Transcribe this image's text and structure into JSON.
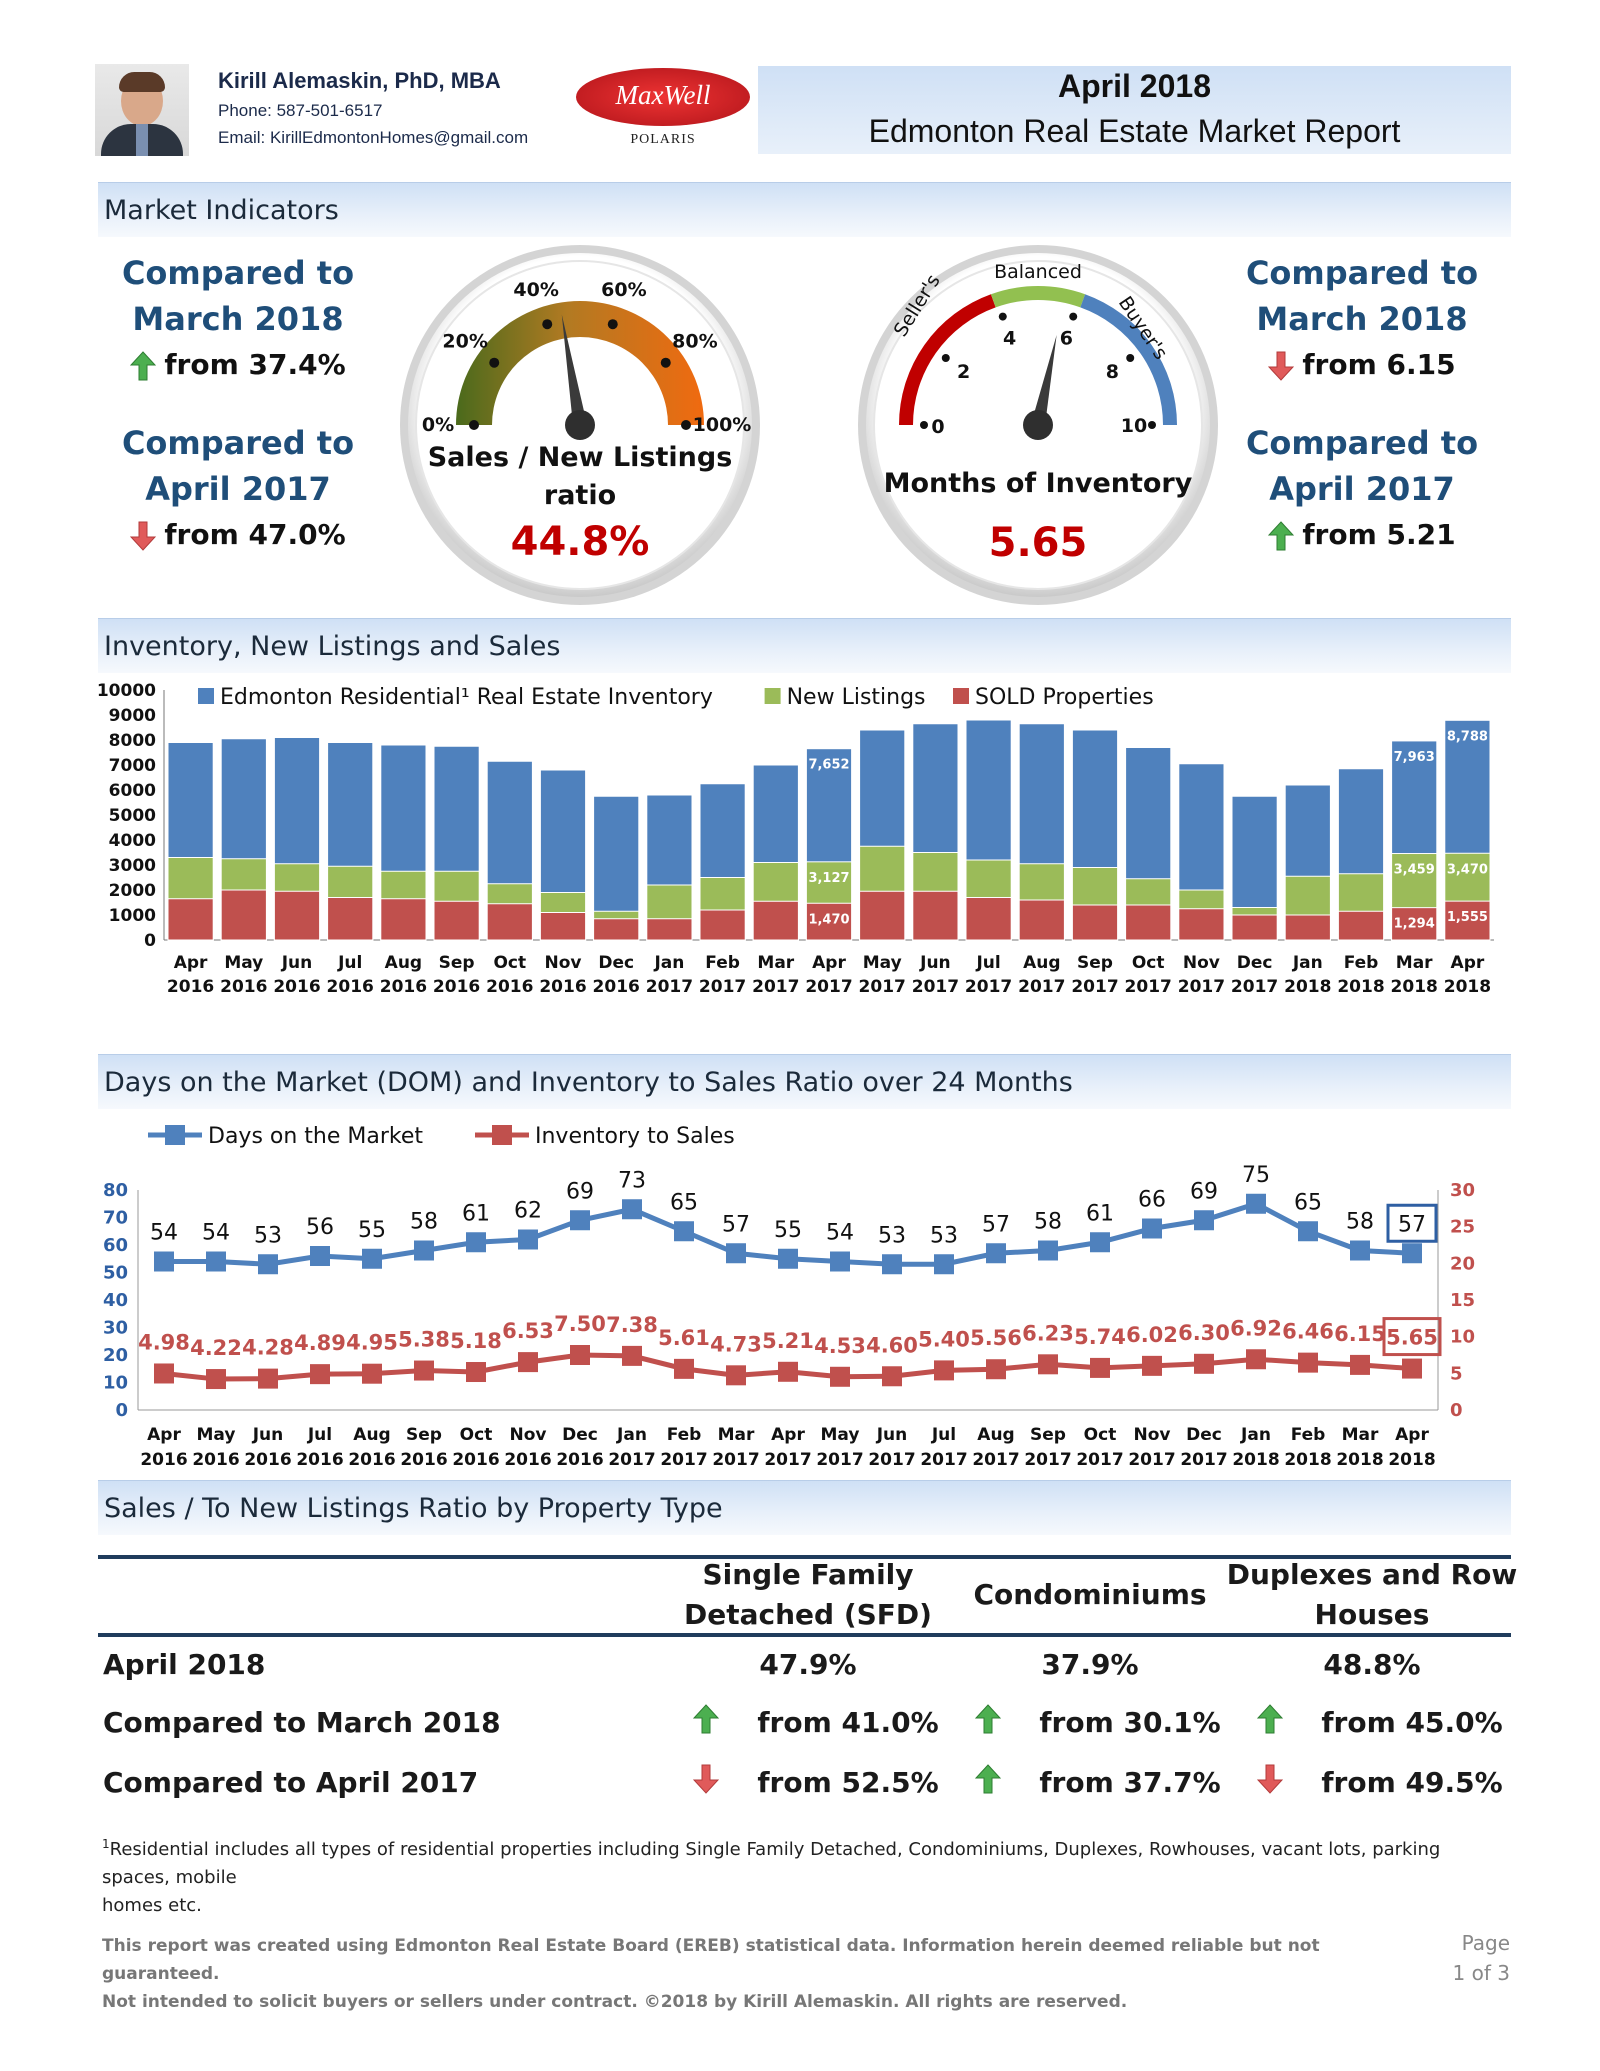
{
  "header": {
    "name": "Kirill Alemaskin, PhD, MBA",
    "phone": "Phone: 587-501-6517",
    "email": "Email: KirillEdmontonHomes@gmail.com",
    "logo_text": "MaxWell",
    "logo_sub": "POLARIS",
    "report_date": "April 2018",
    "report_title": "Edmonton Real Estate Market Report"
  },
  "sections": {
    "indicators": "Market Indicators",
    "inventory": "Inventory, New Listings and Sales",
    "dom": "Days on the Market (DOM) and Inventory to Sales Ratio over 24 Months",
    "ratio": "Sales / To New Listings Ratio by Property Type"
  },
  "gauge1": {
    "title_line1": "Sales / New Listings",
    "title_line2": "ratio",
    "value": "44.8%",
    "value_num": 44.8,
    "ticks": [
      "0%",
      "20%",
      "40%",
      "60%",
      "80%",
      "100%"
    ]
  },
  "gauge2": {
    "title": "Months of Inventory",
    "value": "5.65",
    "value_num": 5.65,
    "ticks": [
      "0",
      "2",
      "4",
      "6",
      "8",
      "10"
    ],
    "zones": [
      "Seller's",
      "Balanced",
      "Buyer's"
    ]
  },
  "left_compare": [
    {
      "line1": "Compared to",
      "line2": "March 2018",
      "from": "from 37.4%",
      "dir": "up"
    },
    {
      "line1": "Compared to",
      "line2": "April 2017",
      "from": "from 47.0%",
      "dir": "down"
    }
  ],
  "right_compare": [
    {
      "line1": "Compared to",
      "line2": "March 2018",
      "from": "from 6.15",
      "dir": "down"
    },
    {
      "line1": "Compared to",
      "line2": "April 2017",
      "from": "from 5.21",
      "dir": "up"
    }
  ],
  "chart_data": [
    {
      "type": "bar",
      "legend": [
        "Edmonton Residential¹ Real Estate Inventory",
        "New Listings",
        "SOLD Properties"
      ],
      "colors": [
        "#4f81bd",
        "#9bbb59",
        "#c0504d"
      ],
      "categories": [
        [
          "Apr",
          "2016"
        ],
        [
          "May",
          "2016"
        ],
        [
          "Jun",
          "2016"
        ],
        [
          "Jul",
          "2016"
        ],
        [
          "Aug",
          "2016"
        ],
        [
          "Sep",
          "2016"
        ],
        [
          "Oct",
          "2016"
        ],
        [
          "Nov",
          "2016"
        ],
        [
          "Dec",
          "2016"
        ],
        [
          "Jan",
          "2017"
        ],
        [
          "Feb",
          "2017"
        ],
        [
          "Mar",
          "2017"
        ],
        [
          "Apr",
          "2017"
        ],
        [
          "May",
          "2017"
        ],
        [
          "Jun",
          "2017"
        ],
        [
          "Jul",
          "2017"
        ],
        [
          "Aug",
          "2017"
        ],
        [
          "Sep",
          "2017"
        ],
        [
          "Oct",
          "2017"
        ],
        [
          "Nov",
          "2017"
        ],
        [
          "Dec",
          "2017"
        ],
        [
          "Jan",
          "2018"
        ],
        [
          "Feb",
          "2018"
        ],
        [
          "Mar",
          "2018"
        ],
        [
          "Apr",
          "2018"
        ]
      ],
      "series": [
        {
          "name": "Edmonton Residential¹ Real Estate Inventory",
          "values": [
            7900,
            8050,
            8100,
            7900,
            7800,
            7750,
            7150,
            6800,
            5750,
            5800,
            6250,
            7000,
            7652,
            8400,
            8650,
            8800,
            8650,
            8400,
            7700,
            7050,
            5750,
            6200,
            6850,
            7963,
            8788
          ]
        },
        {
          "name": "New Listings",
          "values": [
            3300,
            3250,
            3050,
            2950,
            2750,
            2750,
            2250,
            1900,
            1150,
            2200,
            2500,
            3100,
            3127,
            3750,
            3500,
            3200,
            3050,
            2900,
            2450,
            2000,
            1300,
            2550,
            2650,
            3459,
            3470
          ]
        },
        {
          "name": "SOLD Properties",
          "values": [
            1650,
            2000,
            1950,
            1700,
            1650,
            1550,
            1450,
            1100,
            850,
            850,
            1200,
            1550,
            1470,
            1950,
            1950,
            1700,
            1600,
            1400,
            1400,
            1250,
            1000,
            1000,
            1150,
            1294,
            1555
          ]
        }
      ],
      "labels": [
        {
          "index": 12,
          "inventory": "7,652",
          "listings": "3,127",
          "sold": "1,470"
        },
        {
          "index": 23,
          "inventory": "7,963",
          "listings": "3,459",
          "sold": "1,294"
        },
        {
          "index": 24,
          "inventory": "8,788",
          "listings": "3,470",
          "sold": "1,555"
        }
      ],
      "ylim": [
        0,
        10000
      ],
      "yticks": [
        "0",
        "1000",
        "2000",
        "3000",
        "4000",
        "5000",
        "6000",
        "7000",
        "8000",
        "9000",
        "10000"
      ]
    },
    {
      "type": "line",
      "legend": [
        "Days on the Market",
        "Inventory to Sales"
      ],
      "colors": [
        "#4f81bd",
        "#c0504d"
      ],
      "categories": [
        [
          "Apr",
          "2016"
        ],
        [
          "May",
          "2016"
        ],
        [
          "Jun",
          "2016"
        ],
        [
          "Jul",
          "2016"
        ],
        [
          "Aug",
          "2016"
        ],
        [
          "Sep",
          "2016"
        ],
        [
          "Oct",
          "2016"
        ],
        [
          "Nov",
          "2016"
        ],
        [
          "Dec",
          "2016"
        ],
        [
          "Jan",
          "2017"
        ],
        [
          "Feb",
          "2017"
        ],
        [
          "Mar",
          "2017"
        ],
        [
          "Apr",
          "2017"
        ],
        [
          "May",
          "2017"
        ],
        [
          "Jun",
          "2017"
        ],
        [
          "Jul",
          "2017"
        ],
        [
          "Aug",
          "2017"
        ],
        [
          "Sep",
          "2017"
        ],
        [
          "Oct",
          "2017"
        ],
        [
          "Nov",
          "2017"
        ],
        [
          "Dec",
          "2017"
        ],
        [
          "Jan",
          "2018"
        ],
        [
          "Feb",
          "2018"
        ],
        [
          "Mar",
          "2018"
        ],
        [
          "Apr",
          "2018"
        ]
      ],
      "series": [
        {
          "name": "Days on the Market",
          "axis": "left",
          "values": [
            54,
            54,
            53,
            56,
            55,
            58,
            61,
            62,
            69,
            73,
            65,
            57,
            55,
            54,
            53,
            53,
            57,
            58,
            61,
            66,
            69,
            75,
            65,
            58,
            57
          ],
          "labels": [
            "54",
            "54",
            "53",
            "56",
            "55",
            "58",
            "61",
            "62",
            "69",
            "73",
            "65",
            "57",
            "55",
            "54",
            "53",
            "53",
            "57",
            "58",
            "61",
            "66",
            "69",
            "75",
            "65",
            "58",
            "57"
          ]
        },
        {
          "name": "Inventory to Sales",
          "axis": "right",
          "values": [
            4.98,
            4.22,
            4.28,
            4.89,
            4.95,
            5.38,
            5.18,
            6.53,
            7.5,
            7.38,
            5.61,
            4.73,
            5.21,
            4.53,
            4.6,
            5.4,
            5.56,
            6.23,
            5.74,
            6.02,
            6.3,
            6.92,
            6.46,
            6.15,
            5.65
          ],
          "labels": [
            "4.98",
            "4.22",
            "4.28",
            "4.89",
            "4.95",
            "5.38",
            "5.18",
            "6.53",
            "7.50",
            "7.38",
            "5.61",
            "4.73",
            "5.21",
            "4.53",
            "4.60",
            "5.40",
            "5.56",
            "6.23",
            "5.74",
            "6.02",
            "6.30",
            "6.92",
            "6.46",
            "6.15",
            "5.65"
          ]
        }
      ],
      "ylim_left": [
        0,
        80
      ],
      "yticks_left": [
        "0",
        "10",
        "20",
        "30",
        "40",
        "50",
        "60",
        "70",
        "80"
      ],
      "ylim_right": [
        0,
        30
      ],
      "yticks_right": [
        "0",
        "5",
        "10",
        "15",
        "20",
        "25",
        "30"
      ]
    }
  ],
  "ratio_table": {
    "headers": [
      [
        "Single Family",
        "Detached (SFD)"
      ],
      [
        "Condominiums"
      ],
      [
        "Duplexes and Row",
        "Houses"
      ]
    ],
    "rows": [
      {
        "label": "April 2018",
        "cells": [
          {
            "text": "47.9%",
            "dir": ""
          },
          {
            "text": "37.9%",
            "dir": ""
          },
          {
            "text": "48.8%",
            "dir": ""
          }
        ]
      },
      {
        "label": "Compared to March 2018",
        "cells": [
          {
            "text": "from 41.0%",
            "dir": "up"
          },
          {
            "text": "from 30.1%",
            "dir": "up"
          },
          {
            "text": "from 45.0%",
            "dir": "up"
          }
        ]
      },
      {
        "label": "Compared to April 2017",
        "cells": [
          {
            "text": "from 52.5%",
            "dir": "down"
          },
          {
            "text": "from 37.7%",
            "dir": "up"
          },
          {
            "text": "from 49.5%",
            "dir": "down"
          }
        ]
      }
    ]
  },
  "footnote": {
    "mark": "1",
    "line1": "Residential includes all types of residential properties including Single Family Detached, Condominiums, Duplexes, Rowhouses, vacant lots, parking spaces, mobile",
    "line2": "homes etc."
  },
  "footer": {
    "line1": "This report was created using Edmonton Real Estate Board (EREB) statistical data. Information herein deemed reliable but not guaranteed.",
    "line2": "Not intended to solicit buyers or sellers under contract. ©2018 by Kirill Alemaskin. All rights are reserved.",
    "page_label": "Page",
    "page_num": "1 of 3"
  }
}
